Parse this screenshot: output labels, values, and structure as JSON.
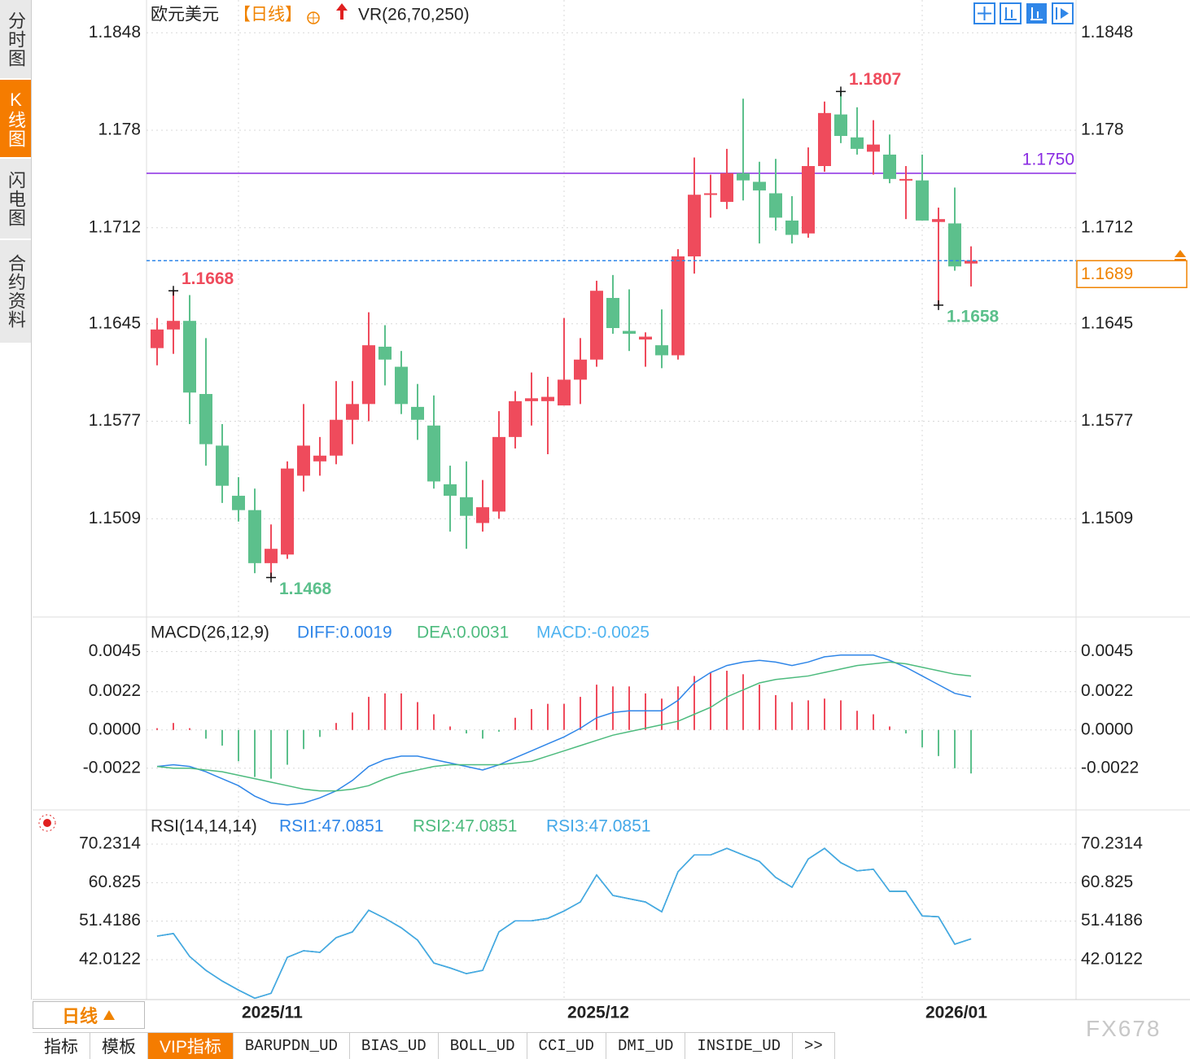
{
  "sidebar": {
    "tabs": [
      "分时图",
      "K线图",
      "闪电图",
      "合约资料"
    ]
  },
  "footer": {
    "period": "日线",
    "tabs": [
      "指标",
      "模板",
      "VIP指标",
      "BARUPDN_UD",
      "BIAS_UD",
      "BOLL_UD",
      "CCI_UD",
      "DMI_UD",
      "INSIDE_UD",
      ">>"
    ],
    "watermark": "FX678"
  },
  "chart_data": [
    {
      "type": "candlestick",
      "title": "欧元美元",
      "period": "【日线】",
      "indicator": "VR(26,70,250)",
      "categories": [
        null,
        null,
        null,
        null,
        null,
        "2025/11",
        null,
        null,
        null,
        null,
        null,
        null,
        null,
        null,
        null,
        null,
        null,
        null,
        null,
        null,
        null,
        null,
        null,
        null,
        null,
        "2025/12",
        null,
        null,
        null,
        null,
        null,
        null,
        null,
        null,
        null,
        null,
        null,
        null,
        null,
        null,
        null,
        null,
        null,
        null,
        null,
        null,
        null,
        "2026/01",
        null,
        null,
        null
      ],
      "open": [
        1.1628,
        1.1641,
        1.1647,
        1.1596,
        1.156,
        1.1525,
        1.1515,
        1.1478,
        1.1484,
        1.1539,
        1.1549,
        1.1553,
        1.1578,
        1.1589,
        1.1629,
        1.1615,
        1.1587,
        1.1574,
        1.1533,
        1.1524,
        1.1506,
        1.1514,
        1.1566,
        1.1591,
        1.1591,
        1.1588,
        1.1606,
        1.162,
        1.1663,
        1.164,
        1.1634,
        1.163,
        1.1623,
        1.1692,
        1.1735,
        1.173,
        1.175,
        1.1744,
        1.1736,
        1.1717,
        1.1708,
        1.1755,
        1.1791,
        1.1775,
        1.1765,
        1.1763,
        1.1745,
        1.1745,
        1.1716,
        1.1715,
        1.1687
      ],
      "high": [
        1.1649,
        1.1668,
        1.1665,
        1.1635,
        1.1575,
        1.1538,
        1.153,
        1.1505,
        1.1549,
        1.1589,
        1.1566,
        1.1605,
        1.1605,
        1.1653,
        1.1644,
        1.1626,
        1.1603,
        1.1595,
        1.1546,
        1.1549,
        1.1536,
        1.1584,
        1.1598,
        1.1611,
        1.1608,
        1.1649,
        1.1635,
        1.1675,
        1.1679,
        1.1669,
        1.1639,
        1.1655,
        1.1697,
        1.1761,
        1.1749,
        1.1767,
        1.1802,
        1.1758,
        1.176,
        1.1734,
        1.1768,
        1.18,
        1.1807,
        1.1796,
        1.1787,
        1.1777,
        1.1755,
        1.1763,
        1.1726,
        1.174,
        1.1699
      ],
      "low": [
        1.1616,
        1.1624,
        1.1575,
        1.1546,
        1.152,
        1.1507,
        1.1471,
        1.1468,
        1.1481,
        1.1528,
        1.1539,
        1.1547,
        1.1561,
        1.1577,
        1.1602,
        1.1582,
        1.1564,
        1.153,
        1.15,
        1.1488,
        1.15,
        1.1509,
        1.1558,
        1.1574,
        1.1554,
        1.1588,
        1.1589,
        1.1615,
        1.1638,
        1.1626,
        1.1615,
        1.1614,
        1.162,
        1.168,
        1.1719,
        1.1725,
        1.1731,
        1.1701,
        1.171,
        1.1701,
        1.1705,
        1.1751,
        1.1771,
        1.1763,
        1.1749,
        1.1743,
        1.1718,
        1.1717,
        1.1658,
        1.1682,
        1.1671
      ],
      "close": [
        1.1641,
        1.1647,
        1.1597,
        1.1561,
        1.1532,
        1.1515,
        1.1478,
        1.1488,
        1.1544,
        1.156,
        1.1553,
        1.1578,
        1.1589,
        1.163,
        1.162,
        1.1589,
        1.1578,
        1.1535,
        1.1525,
        1.1511,
        1.1517,
        1.1566,
        1.1591,
        1.1593,
        1.1594,
        1.1606,
        1.162,
        1.1668,
        1.1642,
        1.1638,
        1.1636,
        1.1623,
        1.1692,
        1.1735,
        1.1736,
        1.175,
        1.1745,
        1.1738,
        1.1719,
        1.1707,
        1.1755,
        1.1792,
        1.1776,
        1.1767,
        1.177,
        1.1746,
        1.1746,
        1.1717,
        1.1718,
        1.1685,
        1.1689
      ],
      "up_color": "#ef4b5c",
      "down_color": "#5cc08c",
      "ylim": [
        1.1441,
        1.1868
      ],
      "yticks": [
        1.1848,
        1.178,
        1.1712,
        1.1645,
        1.1577,
        1.1509
      ],
      "hlines": [
        {
          "value": 1.175,
          "label": "1.1750",
          "color": "#8a2be2"
        }
      ],
      "last_price": 1.1689,
      "last_line_color": "#2f86e8",
      "last_box_color": "#f08300",
      "annotations": [
        1.1668,
        1.1807,
        1.1468,
        1.1658
      ]
    },
    {
      "type": "macd",
      "title": "MACD(26,12,9)",
      "up_color": "#ef4b5c",
      "down_color": "#5cc08c",
      "ylim": [
        -0.0045,
        0.0063
      ],
      "yticks": [
        0.0045,
        0.0022,
        {
          "value": 0,
          "label": "0.0000"
        },
        -0.0022
      ],
      "series": [
        {
          "name": "DIFF:0.0019",
          "type": "line",
          "color": "#2f86e8",
          "values": [
            -0.0021,
            -0.002,
            -0.0021,
            -0.0024,
            -0.0028,
            -0.0032,
            -0.0038,
            -0.0042,
            -0.0043,
            -0.0042,
            -0.0039,
            -0.0035,
            -0.0029,
            -0.0021,
            -0.0017,
            -0.0015,
            -0.0015,
            -0.0017,
            -0.0019,
            -0.0021,
            -0.0023,
            -0.002,
            -0.0016,
            -0.0012,
            -0.0008,
            -0.0004,
            0.0001,
            0.0007,
            0.001,
            0.0011,
            0.0011,
            0.0011,
            0.0017,
            0.0027,
            0.0033,
            0.0037,
            0.0039,
            0.004,
            0.0039,
            0.0037,
            0.0039,
            0.0042,
            0.0043,
            0.0043,
            0.0043,
            0.004,
            0.0036,
            0.0031,
            0.0026,
            0.0021,
            0.0019
          ]
        },
        {
          "name": "DEA:0.0031",
          "type": "line",
          "color": "#4dbb7e",
          "values": [
            -0.0021,
            -0.0022,
            -0.0022,
            -0.0023,
            -0.0024,
            -0.0026,
            -0.0028,
            -0.003,
            -0.0032,
            -0.0034,
            -0.0035,
            -0.0035,
            -0.0034,
            -0.0032,
            -0.0028,
            -0.0025,
            -0.0023,
            -0.0021,
            -0.002,
            -0.002,
            -0.002,
            -0.002,
            -0.0019,
            -0.0018,
            -0.0015,
            -0.0012,
            -0.0009,
            -0.0006,
            -0.0003,
            -0.0001,
            0.0001,
            0.0003,
            0.0005,
            0.0009,
            0.0013,
            0.0019,
            0.0023,
            0.0027,
            0.0029,
            0.003,
            0.0031,
            0.0033,
            0.0035,
            0.0037,
            0.0038,
            0.0039,
            0.0038,
            0.0036,
            0.0034,
            0.0032,
            0.0031
          ]
        },
        {
          "name": "MACD:-0.0025",
          "type": "bar",
          "color": "#4fb3f0",
          "values": [
            0.0001,
            0.0004,
            0.0001,
            -0.0005,
            -0.0009,
            -0.0018,
            -0.0027,
            -0.0028,
            -0.002,
            -0.0011,
            -0.0004,
            0.0004,
            0.001,
            0.0019,
            0.0021,
            0.0021,
            0.0016,
            0.0009,
            0.0002,
            -0.0002,
            -0.0005,
            -0.0001,
            0.0007,
            0.0012,
            0.0015,
            0.0015,
            0.0019,
            0.0026,
            0.0025,
            0.0025,
            0.0021,
            0.0018,
            0.0025,
            0.0031,
            0.0033,
            0.0034,
            0.0032,
            0.0026,
            0.002,
            0.0016,
            0.0017,
            0.0018,
            0.0017,
            0.0011,
            0.0009,
            0.0002,
            -0.0002,
            -0.001,
            -0.0015,
            -0.0022,
            -0.0025
          ]
        }
      ]
    },
    {
      "type": "line",
      "title": "RSI(14,14,14)",
      "ylim": [
        32.27,
        77.59
      ],
      "yticks": [
        70.2314,
        60.825,
        51.4186,
        42.0122
      ],
      "series": [
        {
          "name": "RSI1:47.0851",
          "color": "#2f86e8",
          "values": [
            47.76,
            48.4,
            42.8,
            39.4,
            36.8,
            34.6,
            32.6,
            33.8,
            42.6,
            44.2,
            43.8,
            47.4,
            48.8,
            54.1,
            52.1,
            49.8,
            46.8,
            41.2,
            40.0,
            38.6,
            39.4,
            48.8,
            51.5,
            51.5,
            52.1,
            53.9,
            56.1,
            62.7,
            57.7,
            56.9,
            56.1,
            53.7,
            63.5,
            67.6,
            67.6,
            69.2,
            67.6,
            66.0,
            62.1,
            59.7,
            66.6,
            69.2,
            65.7,
            63.7,
            64.1,
            58.7,
            58.7,
            52.7,
            52.5,
            45.8,
            47.0851
          ]
        },
        {
          "name": "RSI2:47.0851",
          "color": "#4dbb7e",
          "values": [
            47.76,
            48.4,
            42.8,
            39.4,
            36.8,
            34.6,
            32.6,
            33.8,
            42.6,
            44.2,
            43.8,
            47.4,
            48.8,
            54.1,
            52.1,
            49.8,
            46.8,
            41.2,
            40.0,
            38.6,
            39.4,
            48.8,
            51.5,
            51.5,
            52.1,
            53.9,
            56.1,
            62.7,
            57.7,
            56.9,
            56.1,
            53.7,
            63.5,
            67.6,
            67.6,
            69.2,
            67.6,
            66.0,
            62.1,
            59.7,
            66.6,
            69.2,
            65.7,
            63.7,
            64.1,
            58.7,
            58.7,
            52.7,
            52.5,
            45.8,
            47.0851
          ]
        },
        {
          "name": "RSI3:47.0851",
          "color": "#44a8e8",
          "values": [
            47.76,
            48.4,
            42.8,
            39.4,
            36.8,
            34.6,
            32.6,
            33.8,
            42.6,
            44.2,
            43.8,
            47.4,
            48.8,
            54.1,
            52.1,
            49.8,
            46.8,
            41.2,
            40.0,
            38.6,
            39.4,
            48.8,
            51.5,
            51.5,
            52.1,
            53.9,
            56.1,
            62.7,
            57.7,
            56.9,
            56.1,
            53.7,
            63.5,
            67.6,
            67.6,
            69.2,
            67.6,
            66.0,
            62.1,
            59.7,
            66.6,
            69.2,
            65.7,
            63.7,
            64.1,
            58.7,
            58.7,
            52.7,
            52.5,
            45.8,
            47.0851
          ]
        }
      ]
    }
  ]
}
